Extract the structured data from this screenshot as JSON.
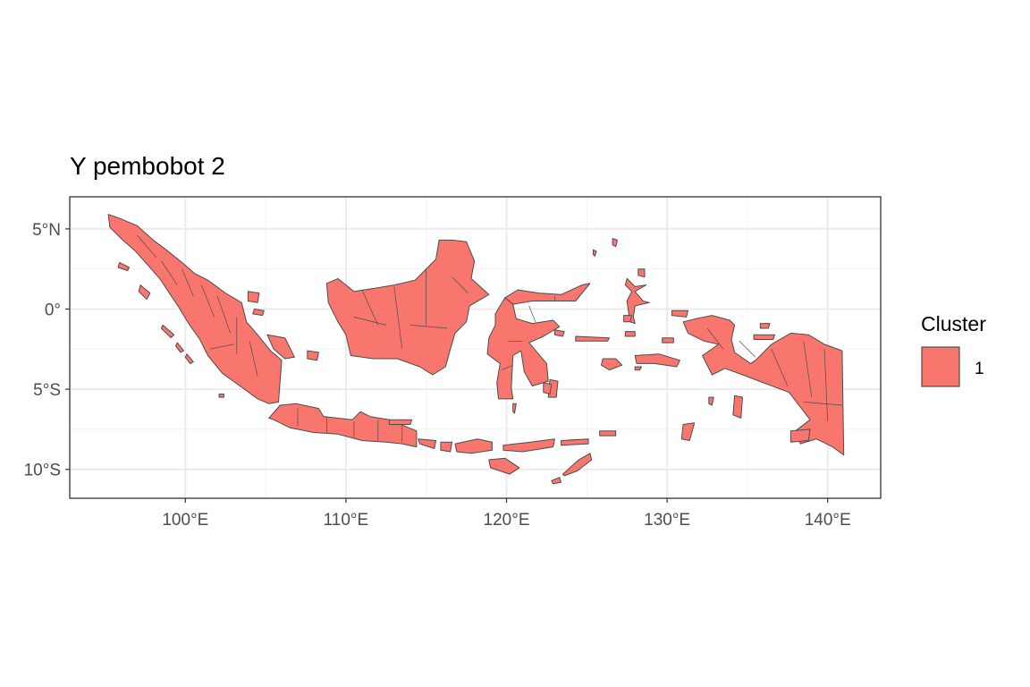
{
  "title": "Y pembobot 2",
  "chart_data": {
    "type": "choropleth_map",
    "title": "Y pembobot 2",
    "region": "Indonesia",
    "xlim": [
      92.8,
      143.3
    ],
    "ylim": [
      -11.8,
      7.0
    ],
    "x_ticks": [
      {
        "value": 100,
        "label": "100°E"
      },
      {
        "value": 110,
        "label": "110°E"
      },
      {
        "value": 120,
        "label": "120°E"
      },
      {
        "value": 130,
        "label": "130°E"
      },
      {
        "value": 140,
        "label": "140°E"
      }
    ],
    "y_ticks": [
      {
        "value": 5,
        "label": "5°N"
      },
      {
        "value": 0,
        "label": "0°"
      },
      {
        "value": -5,
        "label": "5°S"
      },
      {
        "value": -10,
        "label": "10°S"
      }
    ],
    "grid": true,
    "legend": {
      "title": "Cluster",
      "position": "right",
      "entries": [
        {
          "label": "1",
          "color": "#F8766D"
        }
      ]
    },
    "fill_color": "#F8766D",
    "border_color": "#4d4d4d"
  }
}
